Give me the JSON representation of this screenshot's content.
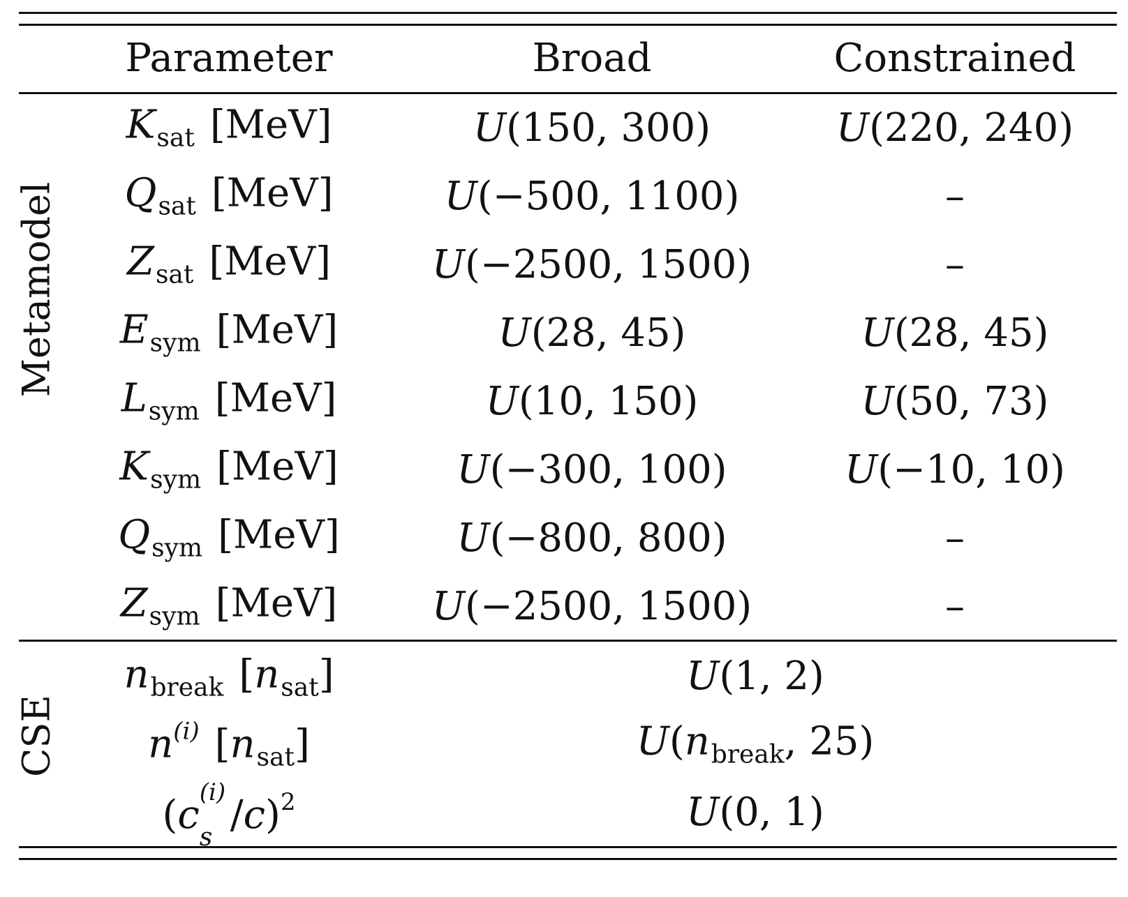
{
  "table": {
    "headers": [
      "Parameter",
      "Broad",
      "Constrained"
    ],
    "groups": [
      "Metamodel",
      "CSE"
    ],
    "unit_mev": "[MeV]",
    "rows_metamodel": [
      {
        "sym": "K",
        "sub": "sat",
        "broad": "(150, 300)",
        "constrained": "(220, 240)"
      },
      {
        "sym": "Q",
        "sub": "sat",
        "broad": "(−500, 1100)",
        "constrained": "–"
      },
      {
        "sym": "Z",
        "sub": "sat",
        "broad": "(−2500, 1500)",
        "constrained": "–"
      },
      {
        "sym": "E",
        "sub": "sym",
        "broad": "(28, 45)",
        "constrained": "(28, 45)"
      },
      {
        "sym": "L",
        "sub": "sym",
        "broad": "(10, 150)",
        "constrained": "(50, 73)"
      },
      {
        "sym": "K",
        "sub": "sym",
        "broad": "(−300, 100)",
        "constrained": "(−10, 10)"
      },
      {
        "sym": "Q",
        "sub": "sym",
        "broad": "(−800, 800)",
        "constrained": "–"
      },
      {
        "sym": "Z",
        "sub": "sym",
        "broad": "(−2500, 1500)",
        "constrained": "–"
      }
    ],
    "rows_cse": [
      {
        "param": "n_break [n_sat]",
        "value": "U(1, 2)"
      },
      {
        "param": "n^(i) [n_sat]",
        "value": "U(n_break, 25)"
      },
      {
        "param": "(c_s^(i)/c)^2",
        "value": "U(0, 1)"
      }
    ],
    "cse_parts": {
      "n": "n",
      "break": "break",
      "sat": "sat",
      "i": "(i)",
      "c": "c",
      "s": "s",
      "two": "2",
      "u1": "(1, 2)",
      "u2_tail": ", 25)",
      "u3": "(0, 1)"
    },
    "U": "U"
  }
}
